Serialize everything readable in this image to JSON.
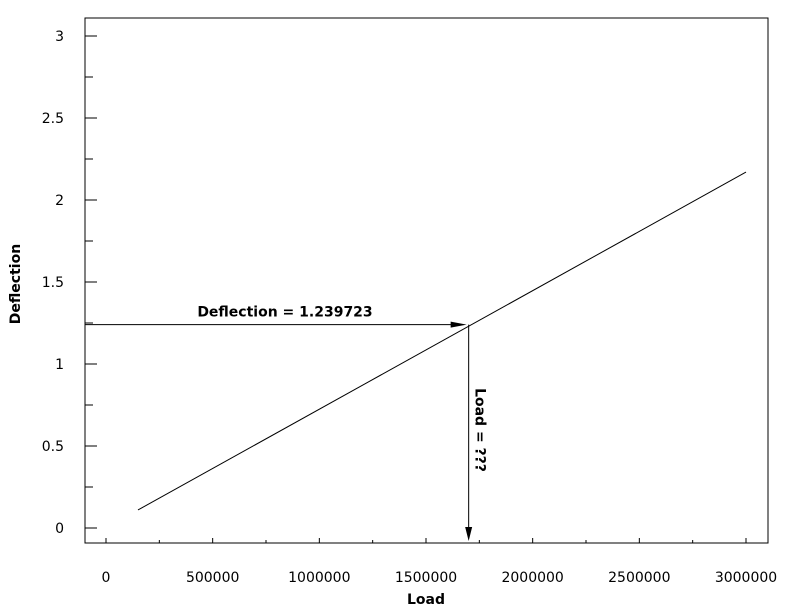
{
  "chart_data": {
    "type": "line",
    "xlabel": "Load",
    "ylabel": "Deflection",
    "xlim": [
      -100000,
      3100000
    ],
    "ylim": [
      -0.1,
      3.1
    ],
    "x_ticks": [
      0,
      500000,
      1000000,
      1500000,
      2000000,
      2500000,
      3000000
    ],
    "x_tick_labels": [
      "0",
      "500000",
      "1000000",
      "1500000",
      "2000000",
      "2500000",
      "3000000"
    ],
    "y_ticks": [
      0,
      0.5,
      1,
      1.5,
      2,
      2.5,
      3
    ],
    "y_tick_labels": [
      "0",
      "0.5",
      "1",
      "1.5",
      "2",
      "2.5",
      "3"
    ],
    "grid": false,
    "series": [
      {
        "x": [
          150000,
          3000000
        ],
        "y": [
          0.11,
          2.17
        ]
      }
    ],
    "annotations": {
      "deflection_label": "Deflection = 1.239723",
      "load_label": "Load = ???",
      "deflection_value": 1.239723,
      "load_value": 1700000
    }
  }
}
